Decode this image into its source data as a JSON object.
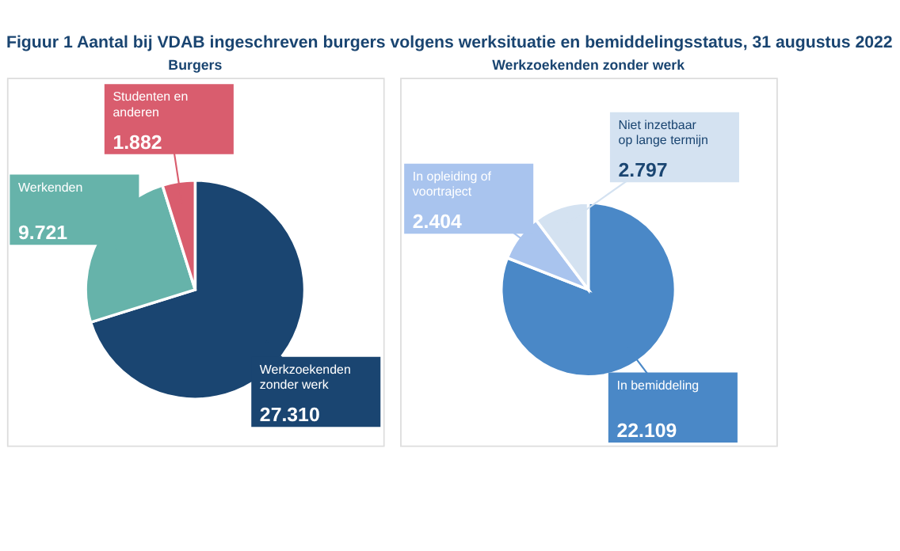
{
  "chart_data": [
    {
      "type": "pie",
      "title": "Burgers",
      "annotations": [
        "Figuur 1 Aantal bij VDAB ingeschreven burgers volgens werksituatie en bemiddelingsstatus, 31 augustus 2022"
      ],
      "categories": [
        "Werkzoekenden zonder werk",
        "Werkenden",
        "Studenten en anderen"
      ],
      "values": [
        27310,
        9721,
        1882
      ],
      "value_labels": [
        "27.310",
        "9.721",
        "1.882"
      ],
      "colors": [
        "#1a4571",
        "#66b3aa",
        "#d95d6e"
      ]
    },
    {
      "type": "pie",
      "title": "Werkzoekenden zonder werk",
      "categories": [
        "In bemiddeling",
        "In opleiding of voortraject",
        "Niet inzetbaar op lange termijn"
      ],
      "values": [
        22109,
        2404,
        2797
      ],
      "value_labels": [
        "22.109",
        "2.404",
        "2.797"
      ],
      "colors": [
        "#4a88c7",
        "#a9c4ee",
        "#d4e2f1"
      ]
    }
  ]
}
